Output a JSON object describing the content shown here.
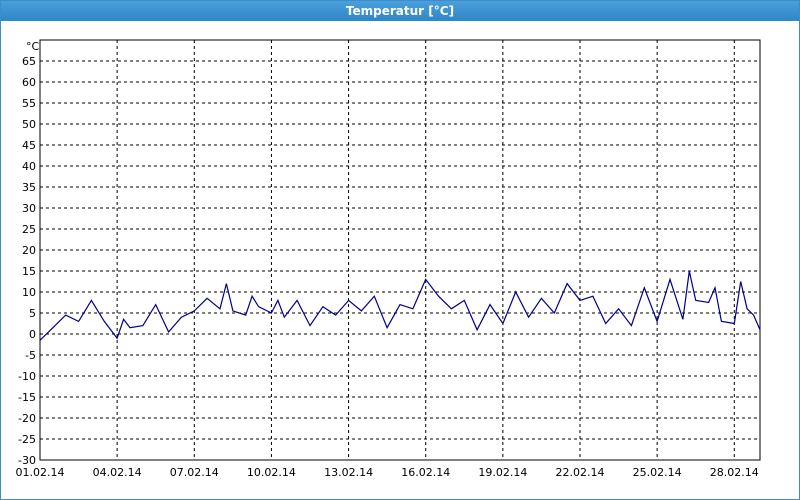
{
  "window": {
    "title": "Temperatur [°C]"
  },
  "colors": {
    "titlebar": "#3c8ec8",
    "series": "#00008b",
    "grid": "#000000"
  },
  "chart_data": {
    "type": "line",
    "title": "Temperatur [°C]",
    "ylabel": "°C",
    "xlabel": "",
    "ylim": [
      -30,
      70
    ],
    "y_ticks": [
      -30,
      -25,
      -20,
      -15,
      -10,
      -5,
      0,
      5,
      10,
      15,
      20,
      25,
      30,
      35,
      40,
      45,
      50,
      55,
      60,
      65
    ],
    "xlim": [
      "01.02.14",
      "01.03.14"
    ],
    "x_tick_labels": [
      "01.02.14",
      "04.02.14",
      "07.02.14",
      "10.02.14",
      "13.02.14",
      "16.02.14",
      "19.02.14",
      "22.02.14",
      "25.02.14",
      "28.02.14"
    ],
    "grid": true,
    "series": [
      {
        "values": [
          [
            "01.02.14",
            -1.5
          ],
          [
            "01.02.14 12:00",
            1.5
          ],
          [
            "02.02.14",
            4.5
          ],
          [
            "02.02.14 12:00",
            3.0
          ],
          [
            "03.02.14",
            8.0
          ],
          [
            "03.02.14 12:00",
            3.0
          ],
          [
            "04.02.14",
            -1.0
          ],
          [
            "04.02.14 06:00",
            3.5
          ],
          [
            "04.02.14 12:00",
            1.5
          ],
          [
            "05.02.14",
            2.0
          ],
          [
            "05.02.14 12:00",
            7.0
          ],
          [
            "06.02.14",
            0.5
          ],
          [
            "06.02.14 12:00",
            4.0
          ],
          [
            "07.02.14",
            5.5
          ],
          [
            "07.02.14 12:00",
            8.5
          ],
          [
            "08.02.14",
            6.0
          ],
          [
            "08.02.14 06:00",
            12.0
          ],
          [
            "08.02.14 12:00",
            5.5
          ],
          [
            "09.02.14",
            4.5
          ],
          [
            "09.02.14 06:00",
            9.0
          ],
          [
            "09.02.14 12:00",
            6.5
          ],
          [
            "10.02.14",
            5.0
          ],
          [
            "10.02.14 06:00",
            8.0
          ],
          [
            "10.02.14 12:00",
            4.0
          ],
          [
            "11.02.14",
            8.0
          ],
          [
            "11.02.14 12:00",
            2.0
          ],
          [
            "12.02.14",
            6.5
          ],
          [
            "12.02.14 12:00",
            4.5
          ],
          [
            "13.02.14",
            8.0
          ],
          [
            "13.02.14 12:00",
            5.5
          ],
          [
            "14.02.14",
            9.0
          ],
          [
            "14.02.14 12:00",
            1.5
          ],
          [
            "15.02.14",
            7.0
          ],
          [
            "15.02.14 12:00",
            6.0
          ],
          [
            "16.02.14",
            13.0
          ],
          [
            "16.02.14 12:00",
            9.0
          ],
          [
            "17.02.14",
            6.0
          ],
          [
            "17.02.14 12:00",
            8.0
          ],
          [
            "18.02.14",
            1.0
          ],
          [
            "18.02.14 12:00",
            7.0
          ],
          [
            "19.02.14",
            2.5
          ],
          [
            "19.02.14 12:00",
            10.0
          ],
          [
            "20.02.14",
            4.0
          ],
          [
            "20.02.14 12:00",
            8.5
          ],
          [
            "21.02.14",
            5.0
          ],
          [
            "21.02.14 12:00",
            12.0
          ],
          [
            "22.02.14",
            8.0
          ],
          [
            "22.02.14 12:00",
            9.0
          ],
          [
            "23.02.14",
            2.5
          ],
          [
            "23.02.14 12:00",
            6.0
          ],
          [
            "24.02.14",
            2.0
          ],
          [
            "24.02.14 12:00",
            11.0
          ],
          [
            "25.02.14",
            3.0
          ],
          [
            "25.02.14 12:00",
            13.0
          ],
          [
            "26.02.14",
            3.5
          ],
          [
            "26.02.14 06:00",
            15.0
          ],
          [
            "26.02.14 12:00",
            8.0
          ],
          [
            "27.02.14",
            7.5
          ],
          [
            "27.02.14 06:00",
            11.0
          ],
          [
            "27.02.14 12:00",
            3.0
          ],
          [
            "28.02.14",
            2.5
          ],
          [
            "28.02.14 06:00",
            12.5
          ],
          [
            "28.02.14 12:00",
            6.0
          ],
          [
            "28.02.14 18:00",
            4.5
          ],
          [
            "01.03.14",
            1.0
          ]
        ]
      }
    ]
  }
}
